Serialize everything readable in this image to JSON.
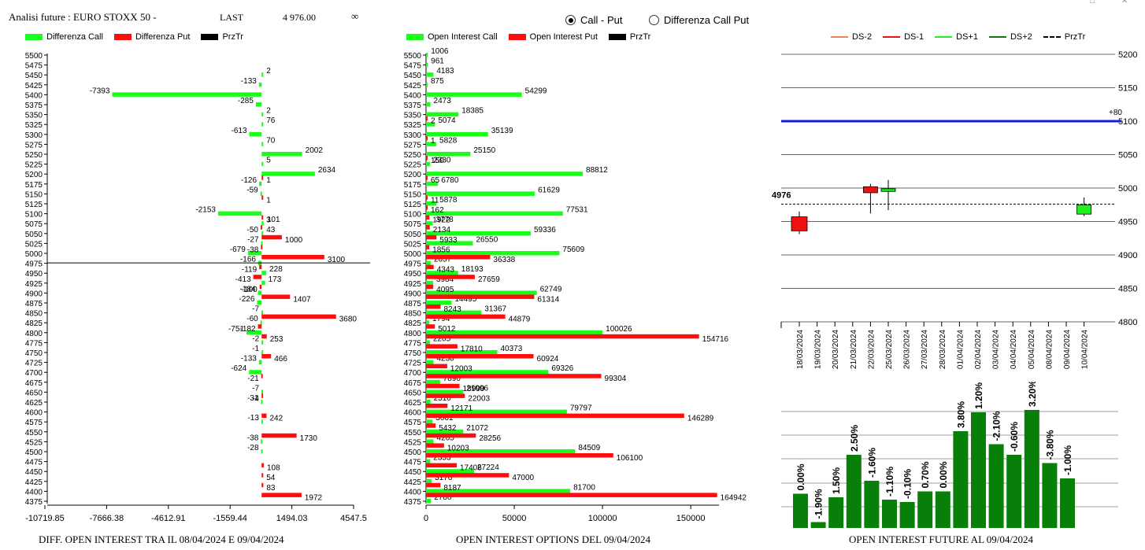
{
  "header": {
    "title": "Analisi future : EURO STOXX 50 -",
    "last_label": "LAST",
    "last_value": "4 976.00",
    "infinity": "∞",
    "radio_options": [
      {
        "label": "Call - Put",
        "selected": true
      },
      {
        "label": "Differenza Call Put",
        "selected": false
      }
    ]
  },
  "legend_diff": [
    {
      "label": "Differenza Call",
      "color": "#19ff19"
    },
    {
      "label": "Differenza Put",
      "color": "#ff0d0d"
    },
    {
      "label": "PrzTr",
      "color": "#000000"
    }
  ],
  "legend_oi": [
    {
      "label": "Open Interest Call",
      "color": "#19ff19"
    },
    {
      "label": "Open Interest Put",
      "color": "#ff0d0d"
    },
    {
      "label": "PrzTr",
      "color": "#000000"
    }
  ],
  "legend_future": [
    {
      "label": "DS-2",
      "color": "#f08060",
      "style": "solid"
    },
    {
      "label": "DS-1",
      "color": "#ee1111",
      "style": "solid"
    },
    {
      "label": "DS+1",
      "color": "#22ee22",
      "style": "solid"
    },
    {
      "label": "DS+2",
      "color": "#117711",
      "style": "solid"
    },
    {
      "label": "PrzTr",
      "color": "#000000",
      "style": "dashed"
    }
  ],
  "captions": {
    "diff": "DIFF. OPEN INTEREST TRA IL 08/04/2024 E 09/04/2024",
    "oi": "OPEN INTEREST OPTIONS DEL 09/04/2024",
    "future": "OPEN INTEREST FUTURE AL 09/04/2024"
  },
  "window_controls": [
    "□",
    "✕"
  ],
  "chart_data": [
    {
      "type": "bar",
      "orientation": "horizontal",
      "strikes": [
        5500,
        5475,
        5450,
        5425,
        5400,
        5375,
        5350,
        5325,
        5300,
        5275,
        5250,
        5225,
        5200,
        5175,
        5150,
        5125,
        5100,
        5075,
        5050,
        5025,
        5000,
        4975,
        4950,
        4925,
        4900,
        4875,
        4850,
        4825,
        4800,
        4775,
        4750,
        4725,
        4700,
        4675,
        4650,
        4625,
        4600,
        4575,
        4550,
        4525,
        4500,
        4475,
        4450,
        4425,
        4400,
        4375
      ],
      "series": [
        {
          "name": "Differenza Call",
          "values": [
            null,
            null,
            2,
            -133,
            -7393,
            -285,
            2,
            76,
            -613,
            70,
            2002,
            5,
            2634,
            -126,
            -59,
            null,
            -2153,
            101,
            43,
            -27,
            -679,
            -166,
            228,
            173,
            -184,
            -226,
            -7,
            -60,
            -751,
            -2,
            -1,
            -133,
            -624,
            null,
            -7,
            -31,
            null,
            -13,
            null,
            -38,
            -28,
            null,
            null,
            null,
            null,
            null
          ]
        },
        {
          "name": "Differenza Put",
          "values": [
            null,
            null,
            null,
            null,
            null,
            null,
            null,
            null,
            null,
            null,
            null,
            null,
            1,
            null,
            1,
            null,
            3,
            -50,
            1000,
            -38,
            3100,
            -119,
            -413,
            -100,
            1407,
            null,
            3680,
            -182,
            253,
            null,
            466,
            null,
            -21,
            null,
            -4,
            null,
            242,
            null,
            1730,
            null,
            null,
            108,
            54,
            83,
            1972,
            null
          ]
        }
      ],
      "xticks": [
        "-10719.85",
        "-7666.38",
        "-4612.91",
        "-1559.44",
        "1494.03",
        "4547.5"
      ],
      "xlim": [
        -10719.85,
        4547.5
      ],
      "przTr": 4976
    },
    {
      "type": "bar",
      "orientation": "horizontal",
      "strikes": [
        5500,
        5475,
        5450,
        5425,
        5400,
        5375,
        5350,
        5325,
        5300,
        5275,
        5250,
        5225,
        5200,
        5175,
        5150,
        5125,
        5100,
        5075,
        5050,
        5025,
        5000,
        4975,
        4950,
        4925,
        4900,
        4875,
        4850,
        4825,
        4800,
        4775,
        4750,
        4725,
        4700,
        4675,
        4650,
        4625,
        4600,
        4575,
        4550,
        4525,
        4500,
        4475,
        4450,
        4425,
        4400,
        4375
      ],
      "series": [
        {
          "name": "Open Interest Call",
          "values": [
            1006,
            961,
            4183,
            875,
            54299,
            2473,
            18385,
            5074,
            35139,
            5828,
            25150,
            2330,
            88812,
            6780,
            61629,
            5878,
            77531,
            3778,
            59336,
            26550,
            75609,
            2657,
            18193,
            3984,
            62749,
            14495,
            31367,
            1794,
            100026,
            2205,
            40373,
            4230,
            69326,
            7890,
            21096,
            2510,
            79797,
            3661,
            21072,
            4265,
            84509,
            2353,
            27224,
            3176,
            81700,
            2786
          ]
        },
        {
          "name": "Open Interest Put",
          "values": [
            null,
            null,
            null,
            null,
            null,
            null,
            2,
            null,
            1,
            null,
            150,
            null,
            65,
            null,
            11,
            162,
            1922,
            2134,
            5933,
            1856,
            36338,
            4343,
            27659,
            4095,
            61314,
            8243,
            44879,
            5012,
            154716,
            17810,
            60924,
            12003,
            99304,
            18990,
            22003,
            12171,
            146289,
            5432,
            28256,
            10203,
            106100,
            17406,
            47000,
            8187,
            164942,
            null
          ]
        }
      ],
      "xticks": [
        "0",
        "50000",
        "100000",
        "150000"
      ],
      "xlim": [
        0,
        166000
      ]
    },
    {
      "type": "candlestick",
      "dates": [
        "18/03/2024",
        "19/03/2024",
        "20/03/2024",
        "21/03/2024",
        "22/03/2024",
        "25/03/2024",
        "26/03/2024",
        "27/03/2024",
        "28/03/2024",
        "01/04/2024",
        "02/04/2024",
        "03/04/2024",
        "04/04/2024",
        "05/04/2024",
        "08/04/2024",
        "09/04/2024",
        "10/04/2024"
      ],
      "candles": [
        {
          "date": "18/03/2024",
          "open": 4936,
          "close": 4957,
          "high": 4965,
          "low": 4931,
          "color": "red"
        },
        {
          "date": "22/03/2024",
          "open": 5002,
          "close": 4993,
          "high": 5006,
          "low": 4962,
          "color": "red"
        },
        {
          "date": "25/03/2024",
          "open": 4995,
          "close": 4999,
          "high": 5012,
          "low": 4967,
          "color": "green"
        },
        {
          "date": "10/04/2024",
          "open": 4961,
          "close": 4975,
          "high": 4986,
          "low": 4958,
          "color": "green"
        }
      ],
      "yticks": [
        "5200",
        "5150",
        "5100",
        "5050",
        "5000",
        "4950",
        "4900",
        "4850",
        "4800"
      ],
      "ylim": [
        4800,
        5200
      ],
      "hline": 5100,
      "hline_label": "+80",
      "przTr": 4976,
      "przTr_label": "4976"
    },
    {
      "type": "bar",
      "values": [
        0.0,
        -1.9,
        1.5,
        2.5,
        -1.6,
        -1.1,
        -0.1,
        0.7,
        0.0,
        3.8,
        1.2,
        -2.1,
        -0.6,
        3.2,
        -3.8,
        -1.0
      ],
      "labels": [
        "0.00%",
        "-1.90%",
        "1.50%",
        "2.50%",
        "-1.60%",
        "-1.10%",
        "-0.10%",
        "0.70%",
        "0.00%",
        "3.80%",
        "1.20%",
        "-2.10%",
        "-0.60%",
        "3.20%",
        "-3.80%",
        "-1.00%"
      ],
      "levels": [
        0.29,
        0.05,
        0.26,
        0.62,
        0.4,
        0.24,
        0.22,
        0.31,
        0.31,
        0.82,
        0.98,
        0.71,
        0.62,
        1.0,
        0.55,
        0.42
      ],
      "color": "#087f08"
    }
  ]
}
